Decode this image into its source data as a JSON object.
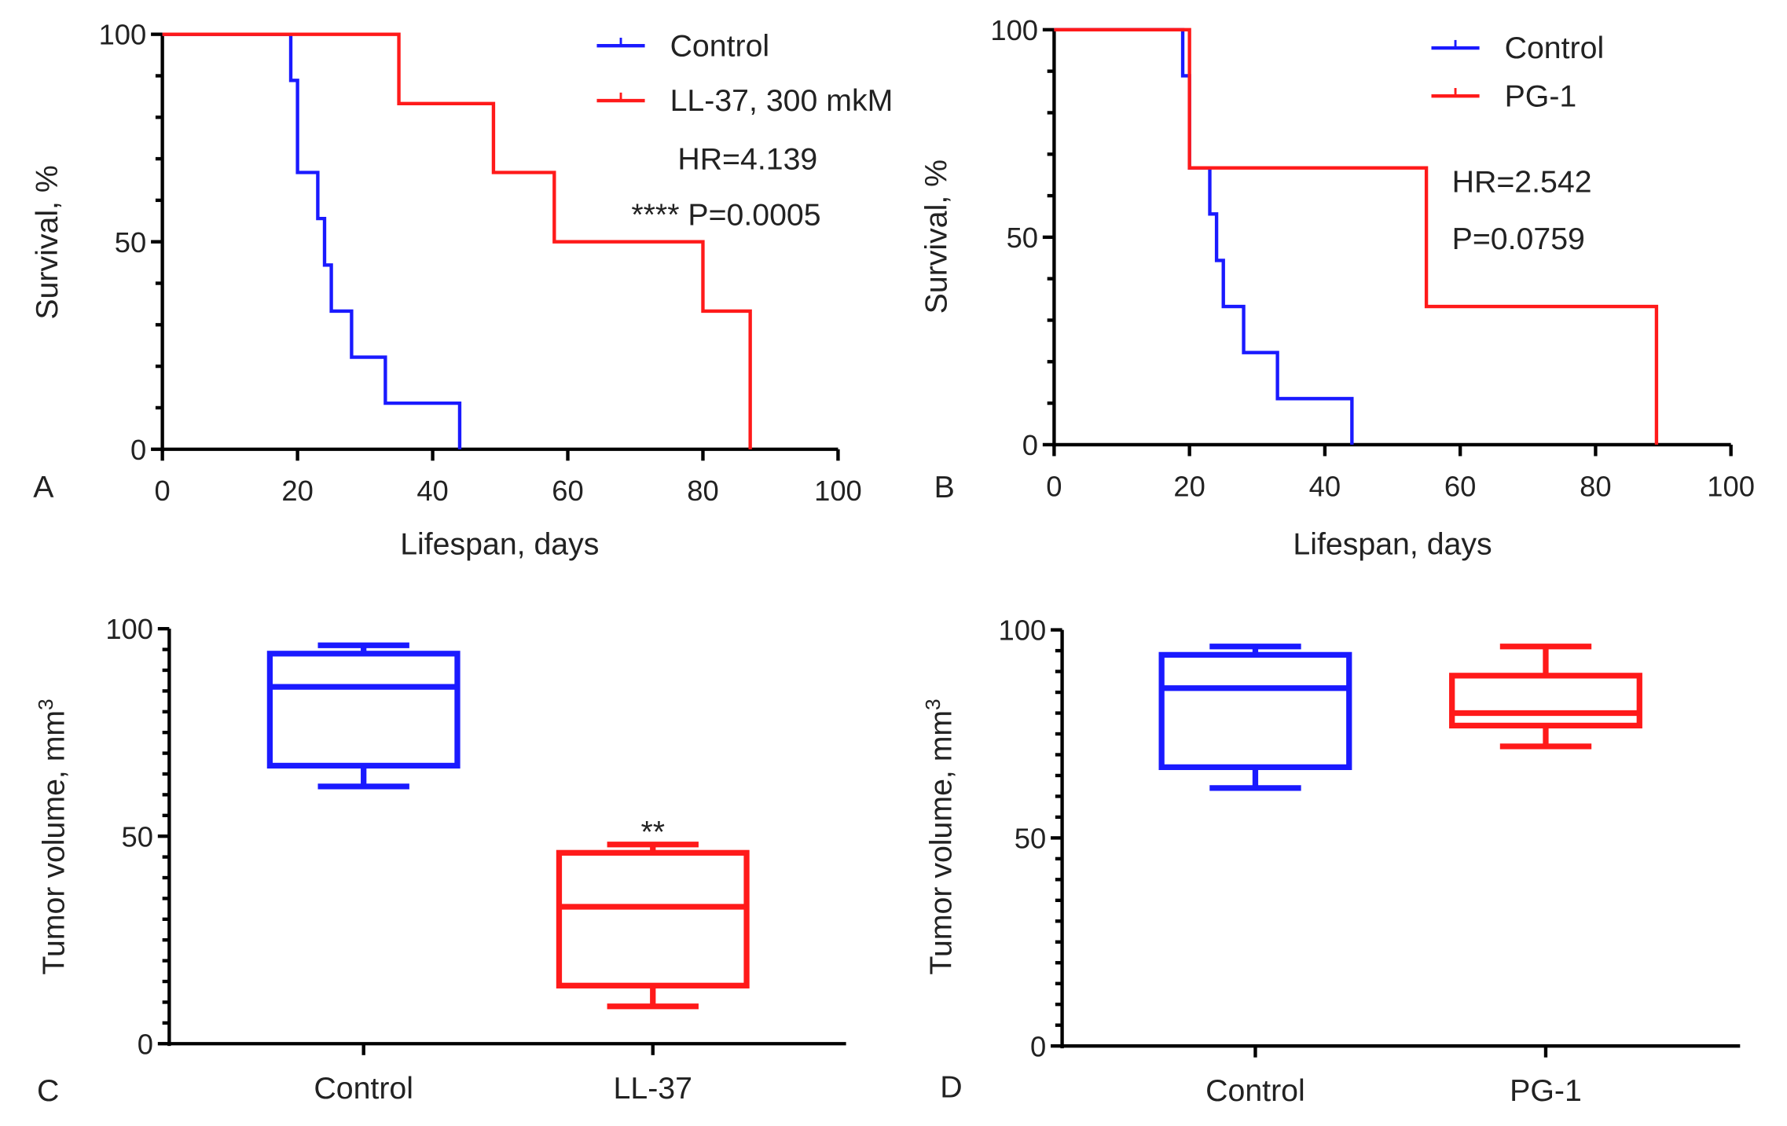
{
  "colors": {
    "control": "#1a1aff",
    "treatment": "#ff1a1a",
    "axis": "#000000"
  },
  "chart_data": [
    {
      "type": "line",
      "subtype": "kaplan-meier",
      "panel": "A",
      "xlabel": "Lifespan, days",
      "ylabel": "Survival, %",
      "xlim": [
        0,
        100
      ],
      "ylim": [
        0,
        100
      ],
      "xticks": [
        "0",
        "20",
        "40",
        "60",
        "80",
        "100"
      ],
      "yticks": [
        "0",
        "50",
        "100"
      ],
      "legend_position": "top-right",
      "series": [
        {
          "name": "Control",
          "color_key": "control",
          "steps": [
            [
              0,
              100
            ],
            [
              19,
              88.9
            ],
            [
              20,
              66.7
            ],
            [
              23,
              55.6
            ],
            [
              24,
              44.4
            ],
            [
              25,
              33.3
            ],
            [
              28,
              22.2
            ],
            [
              33,
              11.1
            ],
            [
              44,
              0
            ]
          ]
        },
        {
          "name": "LL-37, 300 mkM",
          "color_key": "treatment",
          "steps": [
            [
              0,
              100
            ],
            [
              35,
              83.3
            ],
            [
              49,
              66.7
            ],
            [
              58,
              50
            ],
            [
              80,
              33.3
            ],
            [
              87,
              0
            ]
          ]
        }
      ],
      "annotations": [
        "HR=4.139",
        "**** P=0.0005"
      ]
    },
    {
      "type": "line",
      "subtype": "kaplan-meier",
      "panel": "B",
      "xlabel": "Lifespan, days",
      "ylabel": "Survival, %",
      "xlim": [
        0,
        100
      ],
      "ylim": [
        0,
        100
      ],
      "xticks": [
        "0",
        "20",
        "40",
        "60",
        "80",
        "100"
      ],
      "yticks": [
        "0",
        "50",
        "100"
      ],
      "legend_position": "top-right",
      "series": [
        {
          "name": "Control",
          "color_key": "control",
          "steps": [
            [
              0,
              100
            ],
            [
              19,
              88.9
            ],
            [
              20,
              66.7
            ],
            [
              23,
              55.6
            ],
            [
              24,
              44.4
            ],
            [
              25,
              33.3
            ],
            [
              28,
              22.2
            ],
            [
              33,
              11.1
            ],
            [
              44,
              0
            ]
          ]
        },
        {
          "name": "PG-1",
          "color_key": "treatment",
          "steps": [
            [
              0,
              100
            ],
            [
              20,
              66.7
            ],
            [
              55,
              33.3
            ],
            [
              89,
              0
            ]
          ]
        }
      ],
      "annotations": [
        "HR=2.542",
        "P=0.0759"
      ]
    },
    {
      "type": "box",
      "panel": "C",
      "ylabel": "Tumor volume, mm",
      "ylabel_sup": "3",
      "ylim": [
        0,
        100
      ],
      "yticks": [
        "0",
        "50",
        "100"
      ],
      "categories": [
        "Control",
        "LL-37"
      ],
      "boxes": [
        {
          "name": "Control",
          "color_key": "control",
          "min": 62,
          "q1": 67,
          "median": 86,
          "q3": 94,
          "max": 96,
          "sig": ""
        },
        {
          "name": "LL-37",
          "color_key": "treatment",
          "min": 9,
          "q1": 14,
          "median": 33,
          "q3": 46,
          "max": 48,
          "sig": "**"
        }
      ]
    },
    {
      "type": "box",
      "panel": "D",
      "ylabel": "Tumor volume, mm",
      "ylabel_sup": "3",
      "ylim": [
        0,
        100
      ],
      "yticks": [
        "0",
        "50",
        "100"
      ],
      "categories": [
        "Control",
        "PG-1"
      ],
      "boxes": [
        {
          "name": "Control",
          "color_key": "control",
          "min": 62,
          "q1": 67,
          "median": 86,
          "q3": 94,
          "max": 96,
          "sig": ""
        },
        {
          "name": "PG-1",
          "color_key": "treatment",
          "min": 72,
          "q1": 77,
          "median": 80,
          "q3": 89,
          "max": 96,
          "sig": ""
        }
      ]
    }
  ]
}
